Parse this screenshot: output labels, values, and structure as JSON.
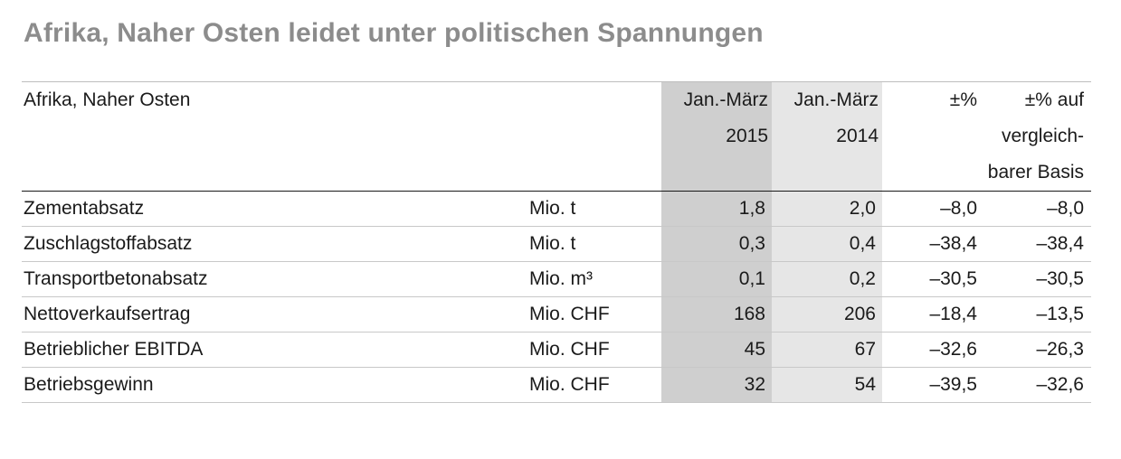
{
  "title": "Afrika, Naher Osten leidet unter politischen Spannungen",
  "table": {
    "header": {
      "label": "Afrika, Naher Osten",
      "col_2015": [
        "Jan.-März",
        "2015"
      ],
      "col_2014": [
        "Jan.-März",
        "2014"
      ],
      "col_pct": "±%",
      "col_cmp": [
        "±% auf",
        "vergleich-",
        "barer Basis"
      ]
    },
    "rows": [
      {
        "label": "Zementabsatz",
        "unit": "Mio. t",
        "v2015": "1,8",
        "v2014": "2,0",
        "pct": "–8,0",
        "cmp": "–8,0"
      },
      {
        "label": "Zuschlagstoffabsatz",
        "unit": "Mio. t",
        "v2015": "0,3",
        "v2014": "0,4",
        "pct": "–38,4",
        "cmp": "–38,4"
      },
      {
        "label": "Transportbetonabsatz",
        "unit": "Mio. m³",
        "v2015": "0,1",
        "v2014": "0,2",
        "pct": "–30,5",
        "cmp": "–30,5"
      },
      {
        "label": "Nettoverkaufsertrag",
        "unit": "Mio. CHF",
        "v2015": "168",
        "v2014": "206",
        "pct": "–18,4",
        "cmp": "–13,5"
      },
      {
        "label": "Betrieblicher EBITDA",
        "unit": "Mio. CHF",
        "v2015": "45",
        "v2014": "67",
        "pct": "–32,6",
        "cmp": "–26,3"
      },
      {
        "label": "Betriebsgewinn",
        "unit": "Mio. CHF",
        "v2015": "32",
        "v2014": "54",
        "pct": "–39,5",
        "cmp": "–32,6"
      }
    ]
  },
  "colors": {
    "title": "#8c8c8c",
    "col_2015_bg": "#cfcfcf",
    "col_2014_bg": "#e6e6e6"
  }
}
